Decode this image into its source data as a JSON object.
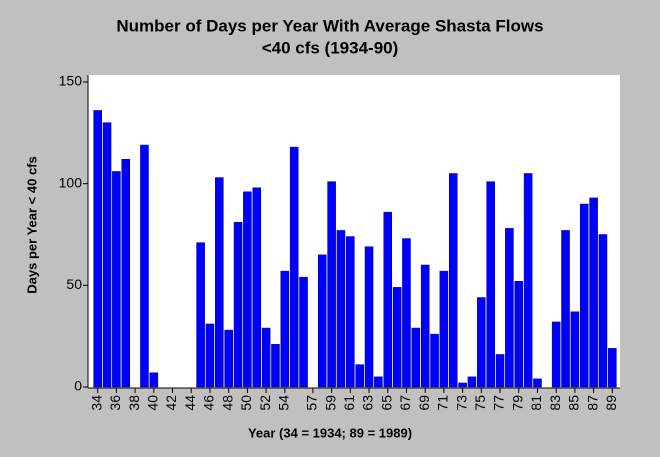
{
  "chart_data": {
    "type": "bar",
    "title": [
      "Number of Days per Year With Average Shasta Flows",
      "<40 cfs (1934-90)"
    ],
    "x_label": "Year (34 = 1934; 89 = 1989)",
    "y_label": "Days per Year < 40 cfs",
    "categories": [
      "34",
      null,
      "36",
      null,
      "38",
      null,
      "40",
      null,
      "42",
      null,
      "44",
      null,
      "46",
      null,
      "48",
      null,
      "50",
      null,
      "52",
      null,
      "54",
      null,
      null,
      "57",
      null,
      "59",
      null,
      "61",
      null,
      "63",
      null,
      "65",
      null,
      "67",
      null,
      "69",
      null,
      "71",
      null,
      "73",
      null,
      "75",
      null,
      "77",
      null,
      "79",
      null,
      "81",
      null,
      "83",
      null,
      "85",
      null,
      "87",
      null,
      "89"
    ],
    "values": [
      136,
      130,
      106,
      112,
      0,
      119,
      7,
      0,
      0,
      0,
      0,
      71,
      31,
      103,
      28,
      81,
      96,
      98,
      29,
      21,
      57,
      118,
      54,
      0,
      65,
      101,
      77,
      74,
      11,
      69,
      5,
      86,
      49,
      73,
      29,
      60,
      26,
      57,
      105,
      2,
      5,
      44,
      101,
      16,
      78,
      52,
      105,
      4,
      0,
      32,
      77,
      37,
      90,
      93,
      75,
      19
    ],
    "color": "#0000ff",
    "ylim": [
      0,
      150
    ],
    "yticks": [
      0,
      50,
      100,
      150
    ],
    "grid": false
  }
}
